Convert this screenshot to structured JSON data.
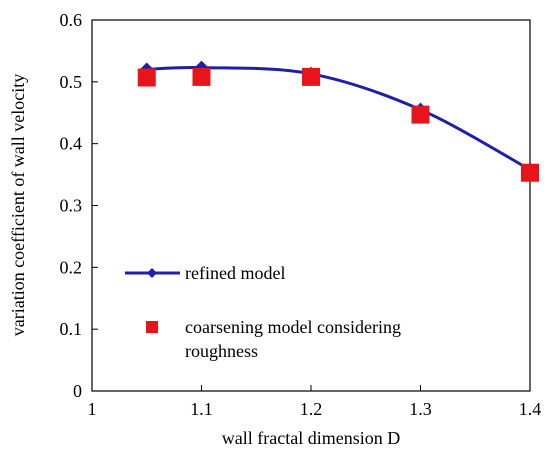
{
  "chart_data": {
    "type": "line",
    "xlabel": "wall fractal dimension D",
    "ylabel": "variation coefficient of wall velocity",
    "xlim": [
      1,
      1.4
    ],
    "ylim": [
      0,
      0.6
    ],
    "x_ticks": [
      1,
      1.1,
      1.2,
      1.3,
      1.4
    ],
    "x_tick_labels": [
      "1",
      "1.1",
      "1.2",
      "1.3",
      "1.4"
    ],
    "y_ticks": [
      0,
      0.1,
      0.2,
      0.3,
      0.4,
      0.5,
      0.6
    ],
    "y_tick_labels": [
      "0",
      "0.1",
      "0.2",
      "0.3",
      "0.4",
      "0.5",
      "0.6"
    ],
    "grid": false,
    "legend_position": "lower-left",
    "series": [
      {
        "name": "refined model",
        "style": "line-with-diamond-markers",
        "color": "#1f1fa8",
        "x": [
          1.05,
          1.1,
          1.2,
          1.3,
          1.4
        ],
        "y": [
          0.52,
          0.523,
          0.513,
          0.455,
          0.358
        ],
        "legend_lines": [
          "refined model"
        ]
      },
      {
        "name": "coarsening model considering roughness",
        "style": "square-markers",
        "color": "#e8141b",
        "x": [
          1.05,
          1.1,
          1.2,
          1.3,
          1.4
        ],
        "y": [
          0.507,
          0.508,
          0.508,
          0.447,
          0.353
        ],
        "legend_lines": [
          "coarsening model considering",
          "roughness"
        ]
      }
    ]
  }
}
